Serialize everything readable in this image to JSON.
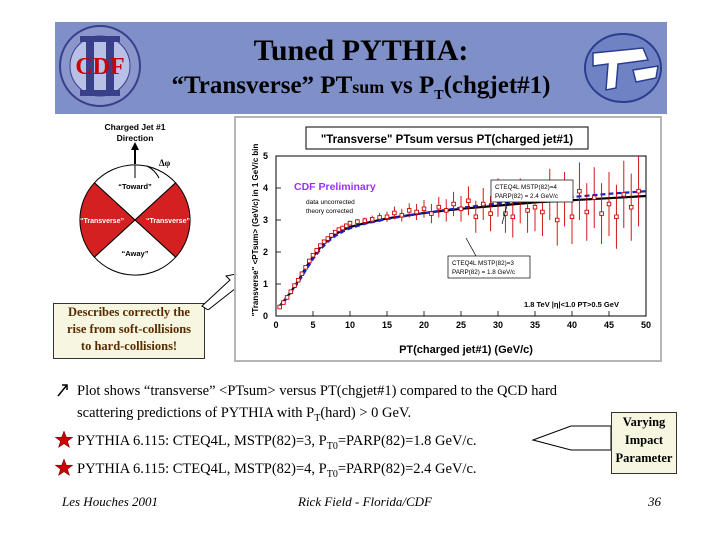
{
  "slide": {
    "title_line1": "Tuned PYTHIA:",
    "title_line2_a": "“Transverse” PT",
    "title_line2_b": "sum",
    "title_line2_c": " vs P",
    "title_line2_sub": "T",
    "title_line2_d": "(chgjet#1)",
    "logo_text": "CDF",
    "colors": {
      "banner": "#7f8fc8",
      "accent_red": "#cc0000",
      "box_fill": "#f6f6e1"
    }
  },
  "diagram": {
    "header1": "Charged Jet #1",
    "header2": "Direction",
    "dphi": "Δφ",
    "toward": "“Toward”",
    "transverse_left": "“Transverse”",
    "transverse_right": "“Transverse”",
    "away": "“Away”"
  },
  "callout": {
    "describes": [
      "Describes correctly the",
      "rise from soft-collisions",
      "to hard-collisions!"
    ]
  },
  "chart_data": {
    "type": "scatter",
    "title": "\"Transverse\" PTsum versus PT(charged jet#1)",
    "xlabel": "PT(charged jet#1)  (GeV/c)",
    "ylabel": "\"Transverse\" <PTsum> (GeV/c) in 1 GeV/c bin",
    "xlim": [
      0,
      50
    ],
    "ylim": [
      0,
      5
    ],
    "xticks": [
      "0",
      "5",
      "10",
      "15",
      "20",
      "25",
      "30",
      "35",
      "40",
      "45",
      "50"
    ],
    "yticks": [
      "0",
      "1",
      "2",
      "3",
      "4",
      "5"
    ],
    "preliminary": "CDF Preliminary",
    "prelim_sub1": "data uncorrected",
    "prelim_sub2": "theory corrected",
    "run_label": "1.8 TeV |η|<1.0 PT>0.5 GeV",
    "legend_upper": [
      "CTEQ4L MSTP(82)=4",
      "PARP(82) = 2.4 GeV/c"
    ],
    "legend_lower": [
      "CTEQ4L MSTP(82)=3",
      "PARP(82) = 1.8 GeV/c"
    ],
    "series": [
      {
        "name": "CDF data",
        "color": "#cc0000",
        "x": [
          0.5,
          1,
          1.5,
          2,
          2.5,
          3,
          3.5,
          4,
          4.5,
          5,
          5.5,
          6,
          6.5,
          7,
          7.5,
          8,
          8.5,
          9,
          9.5,
          10,
          11,
          12,
          13,
          14,
          15,
          16,
          17,
          18,
          19,
          20,
          21,
          22,
          23,
          24,
          25,
          26,
          27,
          28,
          29,
          30,
          31,
          32,
          33,
          34,
          35,
          36,
          37,
          38,
          39,
          40,
          41,
          42,
          43,
          44,
          45,
          46,
          47,
          48,
          49
        ],
        "y": [
          0.28,
          0.42,
          0.58,
          0.76,
          0.95,
          1.12,
          1.32,
          1.52,
          1.72,
          1.9,
          2.05,
          2.2,
          2.32,
          2.42,
          2.52,
          2.62,
          2.7,
          2.75,
          2.82,
          2.9,
          2.95,
          2.98,
          3.02,
          3.08,
          3.1,
          3.22,
          3.15,
          3.3,
          3.25,
          3.35,
          3.2,
          3.4,
          3.3,
          3.5,
          3.35,
          3.6,
          3.1,
          3.5,
          3.2,
          3.7,
          3.2,
          3.1,
          3.6,
          3.3,
          3.4,
          3.25,
          3.8,
          3.0,
          3.65,
          3.1,
          3.9,
          3.25,
          3.7,
          3.2,
          3.5,
          3.1,
          3.8,
          3.4,
          3.9
        ],
        "yerr": [
          0.02,
          0.02,
          0.02,
          0.03,
          0.03,
          0.03,
          0.03,
          0.04,
          0.04,
          0.04,
          0.04,
          0.05,
          0.05,
          0.05,
          0.06,
          0.06,
          0.06,
          0.07,
          0.07,
          0.08,
          0.08,
          0.1,
          0.12,
          0.14,
          0.16,
          0.2,
          0.2,
          0.22,
          0.25,
          0.28,
          0.3,
          0.32,
          0.35,
          0.38,
          0.4,
          0.45,
          0.5,
          0.5,
          0.55,
          0.6,
          0.6,
          0.65,
          0.7,
          0.7,
          0.75,
          0.75,
          0.8,
          0.8,
          0.85,
          0.85,
          0.9,
          0.9,
          0.95,
          0.95,
          1.0,
          1.0,
          1.05,
          1.05,
          1.1
        ]
      },
      {
        "name": "PYTHIA MSTP(82)=4 PARP(82)=2.4",
        "color": "#000000",
        "x": [
          0.5,
          1,
          2,
          3,
          4,
          5,
          6,
          7,
          8,
          9,
          10,
          12,
          15,
          20,
          25,
          30,
          35,
          40,
          45,
          50
        ],
        "y": [
          0.32,
          0.45,
          0.75,
          1.1,
          1.5,
          1.85,
          2.15,
          2.38,
          2.55,
          2.68,
          2.78,
          2.9,
          3.05,
          3.22,
          3.35,
          3.45,
          3.55,
          3.62,
          3.68,
          3.75
        ]
      },
      {
        "name": "PYTHIA MSTP(82)=3 PARP(82)=1.8",
        "color": "#2020cc",
        "x": [
          0.5,
          1,
          2,
          3,
          4,
          5,
          6,
          7,
          8,
          9,
          10,
          12,
          15,
          20,
          25,
          30,
          35,
          40,
          45,
          50
        ],
        "y": [
          0.3,
          0.42,
          0.72,
          1.05,
          1.42,
          1.78,
          2.08,
          2.32,
          2.5,
          2.63,
          2.74,
          2.88,
          3.03,
          3.22,
          3.38,
          3.52,
          3.62,
          3.72,
          3.82,
          3.9
        ]
      }
    ]
  },
  "bullets": {
    "line1": "Plot shows “transverse” <PTsum> versus PT(chgjet#1) compared to the QCD hard",
    "line2a": "scattering predictions of PYTHIA with P",
    "line2sub": "T",
    "line2b": "(hard) > 0 GeV.",
    "p1a": "PYTHIA 6.115: CTEQ4L, MSTP(82)=3, P",
    "p1sub": "T0",
    "p1b": "=PARP(82)=1.8 GeV/c.",
    "p2a": "PYTHIA 6.115: CTEQ4L, MSTP(82)=4, P",
    "p2sub": "T0",
    "p2b": "=PARP(82)=2.4 GeV/c."
  },
  "varying": [
    "Varying",
    "Impact",
    "Parameter"
  ],
  "footer": {
    "left": "Les Houches 2001",
    "center": "Rick Field - Florida/CDF",
    "right": "36"
  }
}
